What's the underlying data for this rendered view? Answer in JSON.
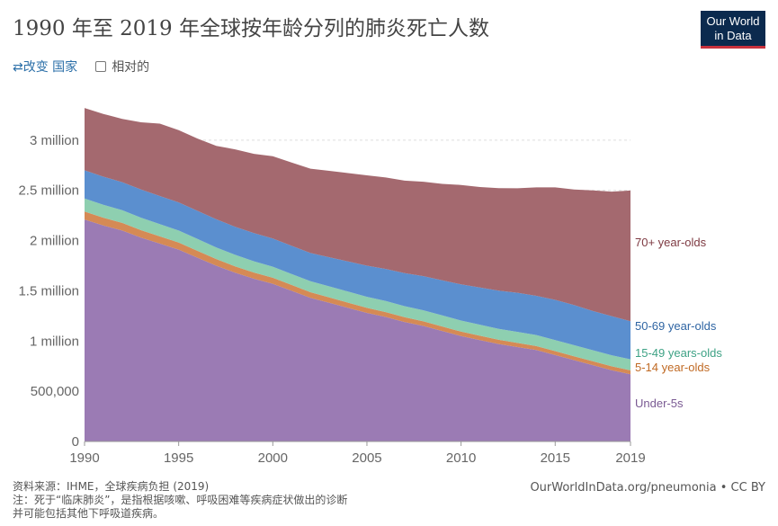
{
  "header": {
    "title": "1990 年至 2019 年全球按年龄分列的肺炎死亡人数",
    "logo_line1": "Our World",
    "logo_line2": "in Data"
  },
  "controls": {
    "change_country": "⇄改变 国家",
    "relative_label": "相对的"
  },
  "footer": {
    "source": "资料来源：IHME，全球疾病负担 (2019)",
    "note_line1": "注：死于“临床肺炎”，是指根据咳嗽、呼吸困难等疾病症状做出的诊断",
    "note_line2": "并可能包括其他下呼吸道疾病。",
    "url": "OurWorldInData.org/pneumonia • CC BY"
  },
  "colors": {
    "under5": "#9b7bb4",
    "age5_14": "#d58a55",
    "age15_49": "#8ecfb0",
    "age50_69": "#5b8fcf",
    "age70": "#a4696f",
    "label_under5": "#7a5a93",
    "label_5_14": "#c06a24",
    "label_15_49": "#3ea285",
    "label_50_69": "#2f65a3",
    "label_70": "#7e3a42"
  },
  "chart_data": {
    "type": "area",
    "stacked": true,
    "x": [
      1990,
      1991,
      1992,
      1993,
      1994,
      1995,
      1996,
      1997,
      1998,
      1999,
      2000,
      2001,
      2002,
      2003,
      2004,
      2005,
      2006,
      2007,
      2008,
      2009,
      2010,
      2011,
      2012,
      2013,
      2014,
      2015,
      2016,
      2017,
      2018,
      2019
    ],
    "ylim": [
      0,
      3500000
    ],
    "yticks": [
      0,
      500000,
      1000000,
      1500000,
      2000000,
      2500000,
      3000000
    ],
    "ytick_labels": [
      "0",
      "500,000",
      "1 million",
      "1.5 million",
      "2 million",
      "2.5 million",
      "3 million"
    ],
    "xticks": [
      1990,
      1995,
      2000,
      2005,
      2010,
      2015,
      2019
    ],
    "xtick_labels": [
      "1990",
      "1995",
      "2000",
      "2005",
      "2010",
      "2015",
      "2019"
    ],
    "grid": true,
    "series": [
      {
        "name": "Under-5s",
        "color_key": "under5",
        "label_color_key": "label_under5",
        "values": [
          2210000,
          2150000,
          2100000,
          2030000,
          1970000,
          1910000,
          1830000,
          1750000,
          1680000,
          1620000,
          1570000,
          1500000,
          1430000,
          1380000,
          1330000,
          1280000,
          1240000,
          1190000,
          1150000,
          1100000,
          1050000,
          1010000,
          970000,
          940000,
          910000,
          860000,
          810000,
          760000,
          710000,
          670000
        ]
      },
      {
        "name": "5-14 year-olds",
        "color_key": "age5_14",
        "label_color_key": "label_5_14",
        "values": [
          80000,
          78000,
          76000,
          74000,
          72000,
          70000,
          68000,
          66000,
          64000,
          62000,
          60000,
          58000,
          56000,
          54000,
          52000,
          50000,
          48000,
          47000,
          46000,
          45000,
          44000,
          43000,
          42000,
          41000,
          40000,
          40000,
          39000,
          39000,
          38000,
          38000
        ]
      },
      {
        "name": "15-49 years-olds",
        "color_key": "age15_49",
        "label_color_key": "label_15_49",
        "values": [
          130000,
          128000,
          126000,
          124000,
          122000,
          120000,
          118000,
          116000,
          114000,
          112000,
          110000,
          110000,
          110000,
          110000,
          110000,
          110000,
          110000,
          110000,
          110000,
          110000,
          110000,
          110000,
          110000,
          110000,
          110000,
          110000,
          110000,
          110000,
          110000,
          110000
        ]
      },
      {
        "name": "50-69 year-olds",
        "color_key": "age50_69",
        "label_color_key": "label_50_69",
        "values": [
          280000,
          280000,
          280000,
          280000,
          280000,
          280000,
          280000,
          280000,
          280000,
          280000,
          280000,
          280000,
          280000,
          290000,
          300000,
          310000,
          320000,
          330000,
          340000,
          350000,
          360000,
          370000,
          380000,
          390000,
          390000,
          400000,
          400000,
          390000,
          390000,
          380000
        ]
      },
      {
        "name": "70+ year-olds",
        "color_key": "age70",
        "label_color_key": "label_70",
        "values": [
          620000,
          625000,
          630000,
          670000,
          720000,
          720000,
          720000,
          730000,
          770000,
          790000,
          820000,
          830000,
          840000,
          860000,
          880000,
          900000,
          910000,
          920000,
          940000,
          960000,
          990000,
          1000000,
          1020000,
          1040000,
          1080000,
          1120000,
          1150000,
          1200000,
          1240000,
          1300000
        ]
      }
    ]
  }
}
